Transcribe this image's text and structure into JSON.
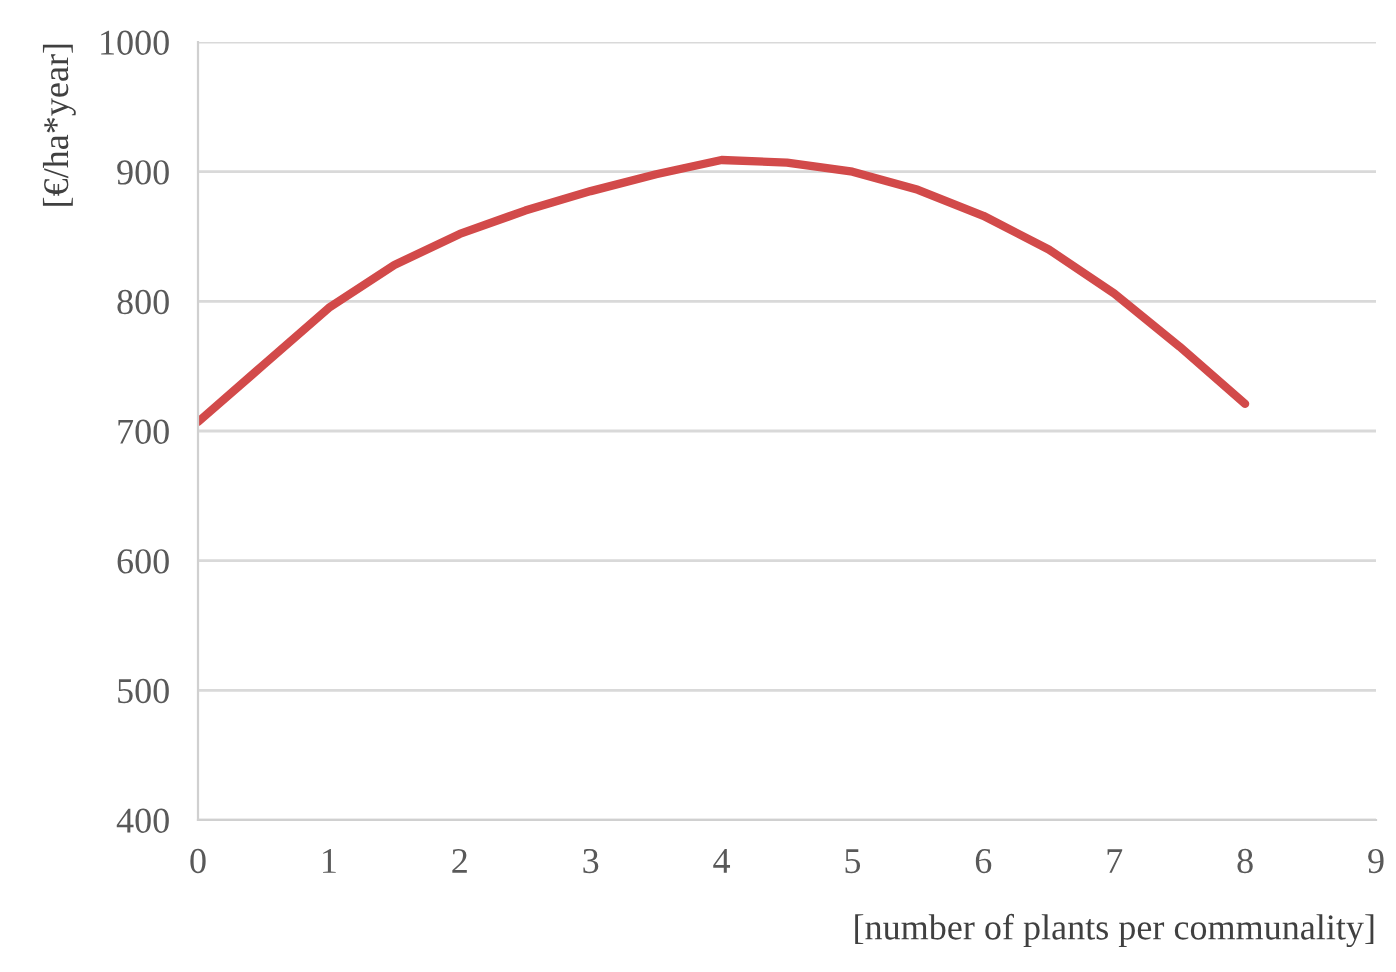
{
  "chart_data": {
    "type": "line",
    "xlabel": "[number of plants per communality]",
    "ylabel": "[€/ha*year]",
    "series": [
      {
        "color": "#d24a4a",
        "x": [
          0,
          0.5,
          1,
          1.5,
          2,
          2.5,
          3,
          3.5,
          4,
          4.5,
          5,
          5.5,
          6,
          6.5,
          7,
          7.5,
          8
        ],
        "values": [
          707,
          751,
          795,
          828,
          852,
          870,
          885,
          898,
          909,
          907,
          900,
          886,
          866,
          840,
          806,
          765,
          721
        ]
      }
    ],
    "xlim": [
      0,
      9
    ],
    "xticks": [
      0,
      1,
      2,
      3,
      4,
      5,
      6,
      7,
      8,
      9
    ],
    "ylim": [
      400,
      1000
    ],
    "yticks": [
      400,
      500,
      600,
      700,
      800,
      900,
      1000
    ],
    "grid": "y",
    "marker": "none",
    "line_style": "solid"
  }
}
